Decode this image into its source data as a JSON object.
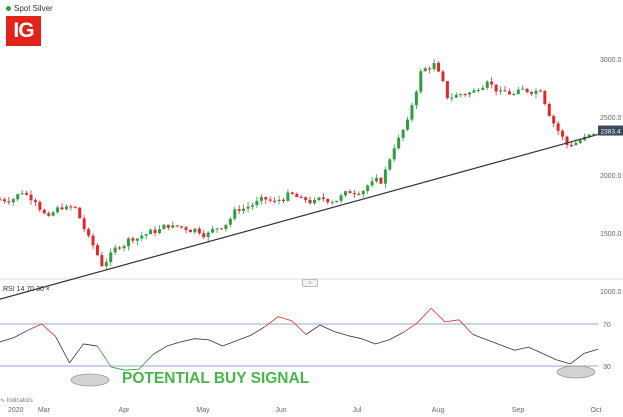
{
  "legend": {
    "label": "Spot Silver",
    "dot_color": "#2e9e3e"
  },
  "logo": {
    "text": "IG",
    "color": "#e2231a"
  },
  "rsi": {
    "label": "RSI  14  70  30  ×"
  },
  "annotation": {
    "text": "POTENTIAL BUY SIGNAL",
    "color": "#47b64a"
  },
  "indicator_button": {
    "label": "∿ Indicators"
  },
  "chart_data": {
    "type": "candlestick",
    "x_ticks": [
      "2020",
      "Mar",
      "Apr",
      "May",
      "Jun",
      "Jul",
      "Aug",
      "Sep",
      "Oct"
    ],
    "y_ticks": [
      "3000.0",
      "2500.0",
      "2000.0",
      "1500.0",
      "1000.0"
    ],
    "ylim": [
      900,
      3100
    ],
    "current_price": "2383.4",
    "up_color": "#2e9e3e",
    "down_color": "#e3262b",
    "trendline": {
      "from": [
        "2020",
        930
      ],
      "to": [
        "Oct",
        2350
      ]
    },
    "close_path": [
      [
        "2020",
        1790
      ],
      [
        "Feb",
        1860
      ],
      [
        "Feb",
        1790
      ],
      [
        "Feb",
        1620
      ],
      [
        "Mar",
        1730
      ],
      [
        "Mar",
        1710
      ],
      [
        "Mar",
        1450
      ],
      [
        "Mar",
        1230
      ],
      [
        "Mar",
        1360
      ],
      [
        "Mar",
        1440
      ],
      [
        "Apr",
        1480
      ],
      [
        "Apr",
        1520
      ],
      [
        "Apr",
        1570
      ],
      [
        "Apr",
        1550
      ],
      [
        "Apr",
        1530
      ],
      [
        "May",
        1490
      ],
      [
        "May",
        1560
      ],
      [
        "May",
        1680
      ],
      [
        "May",
        1730
      ],
      [
        "May",
        1780
      ],
      [
        "Jun",
        1760
      ],
      [
        "Jun",
        1820
      ],
      [
        "Jun",
        1780
      ],
      [
        "Jun",
        1760
      ],
      [
        "Jun",
        1790
      ],
      [
        "Jul",
        1810
      ],
      [
        "Jul",
        1860
      ],
      [
        "Jul",
        1910
      ],
      [
        "Jul",
        1950
      ],
      [
        "Jul",
        2250
      ],
      [
        "Jul",
        2450
      ],
      [
        "Aug",
        2880
      ],
      [
        "Aug",
        2950
      ],
      [
        "Aug",
        2680
      ],
      [
        "Aug",
        2700
      ],
      [
        "Aug",
        2720
      ],
      [
        "Aug",
        2830
      ],
      [
        "Aug",
        2700
      ],
      [
        "Sep",
        2690
      ],
      [
        "Sep",
        2730
      ],
      [
        "Sep",
        2750
      ],
      [
        "Sep",
        2450
      ],
      [
        "Sep",
        2260
      ],
      [
        "Sep",
        2300
      ],
      [
        "Oct",
        2340
      ],
      [
        "Oct",
        2383.4
      ]
    ],
    "rsi": {
      "levels": [
        70,
        30
      ],
      "ylim": [
        20,
        80
      ],
      "y_ticks": [
        "70",
        "30"
      ],
      "values": [
        53,
        57,
        64,
        70,
        58,
        33,
        51,
        49,
        29,
        26,
        27,
        41,
        49,
        53,
        56,
        55,
        49,
        54,
        59,
        67,
        77,
        73,
        60,
        69,
        63,
        59,
        56,
        51,
        55,
        62,
        71,
        85,
        72,
        74,
        60,
        55,
        50,
        45,
        48,
        42,
        36,
        32,
        42,
        46
      ]
    }
  }
}
